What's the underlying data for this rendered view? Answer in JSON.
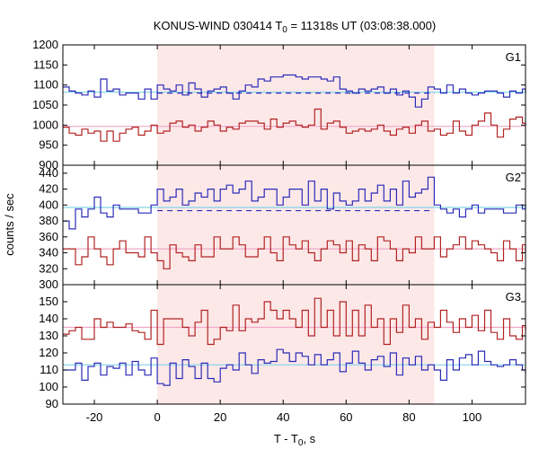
{
  "chart_data": {
    "type": "line",
    "title_main": "KONUS-WIND 030414 T",
    "title_sub": "0",
    "title_rest": " = 11318s UT (03:08:38.000)",
    "xlabel_main": "T - T",
    "xlabel_sub": "0",
    "xlabel_rest": ", s",
    "ylabel": "counts / sec",
    "xlim": [
      -30,
      117
    ],
    "x_ticks": [
      -20,
      0,
      20,
      40,
      60,
      80,
      100
    ],
    "shade": {
      "from": 0,
      "to": 88,
      "color": "#fde8e8"
    },
    "colors": {
      "blue": "#2b2bb8",
      "red": "#b22222",
      "cyan": "#7fd4e8",
      "pink": "#f0a8c8"
    },
    "bin_edges": [
      -30,
      -28,
      -26,
      -24,
      -22,
      -20,
      -18,
      -16,
      -14,
      -12,
      -10,
      -8,
      -6,
      -4,
      -2,
      0,
      2,
      4,
      6,
      8,
      10,
      12,
      14,
      16,
      18,
      20,
      22,
      24,
      26,
      28,
      30,
      32,
      34,
      36,
      38,
      40,
      42,
      44,
      46,
      48,
      50,
      52,
      54,
      56,
      58,
      60,
      62,
      64,
      66,
      68,
      70,
      72,
      74,
      76,
      78,
      80,
      82,
      84,
      86,
      88,
      90,
      92,
      94,
      96,
      98,
      100,
      102,
      104,
      106,
      108,
      110,
      112,
      114,
      116,
      117
    ],
    "panels": [
      {
        "label": "G1",
        "ylim": [
          900,
          1200
        ],
        "y_ticks": [
          900,
          950,
          1000,
          1050,
          1100,
          1150,
          1200
        ],
        "series": [
          {
            "color_key": "blue",
            "values": [
              1095,
              1085,
              1080,
              1075,
              1085,
              1070,
              1115,
              1085,
              1090,
              1075,
              1080,
              1080,
              1065,
              1090,
              1065,
              1100,
              1090,
              1085,
              1100,
              1075,
              1105,
              1090,
              1070,
              1085,
              1090,
              1095,
              1080,
              1065,
              1085,
              1100,
              1095,
              1115,
              1110,
              1120,
              1120,
              1125,
              1125,
              1120,
              1115,
              1120,
              1120,
              1115,
              1110,
              1120,
              1090,
              1085,
              1080,
              1090,
              1085,
              1090,
              1095,
              1080,
              1090,
              1075,
              1085,
              1070,
              1045,
              1065,
              1095,
              1090,
              1080,
              1100,
              1080,
              1090,
              1080,
              1075,
              1080,
              1085,
              1085,
              1080,
              1070,
              1085,
              1080,
              1090,
              1080
            ]
          },
          {
            "color_key": "red",
            "values": [
              995,
              980,
              975,
              990,
              980,
              985,
              960,
              985,
              960,
              980,
              990,
              995,
              975,
              985,
              1000,
              980,
              985,
              1005,
              1010,
              995,
              1000,
              985,
              995,
              1010,
              1000,
              985,
              995,
              990,
              1005,
              1010,
              1010,
              1005,
              990,
              1015,
              995,
              1005,
              1010,
              1000,
              995,
              1000,
              1040,
              990,
              1005,
              1010,
              995,
              980,
              985,
              990,
              985,
              990,
              1000,
              985,
              975,
              990,
              995,
              980,
              1000,
              1010,
              985,
              990,
              975,
              980,
              1010,
              985,
              975,
              1000,
              1010,
              1030,
              1000,
              970,
              990,
              1015,
              1020,
              1005,
              1000
            ]
          }
        ],
        "fits": [
          {
            "color_key": "cyan",
            "y": 1082,
            "from": -30,
            "to": 117
          },
          {
            "color_key": "pink",
            "y": 997,
            "from": -30,
            "to": 117
          },
          {
            "color_key": "blue",
            "y": 1080,
            "from": 0,
            "to": 88,
            "dashed": true
          }
        ]
      },
      {
        "label": "G2",
        "ylim": [
          300,
          450
        ],
        "y_ticks": [
          300,
          320,
          340,
          360,
          380,
          400,
          420,
          440
        ],
        "series": [
          {
            "color_key": "blue",
            "values": [
              380,
              370,
              395,
              385,
              395,
              410,
              390,
              385,
              400,
              395,
              395,
              395,
              390,
              390,
              400,
              420,
              405,
              410,
              420,
              400,
              405,
              415,
              410,
              420,
              405,
              420,
              425,
              415,
              420,
              430,
              405,
              410,
              420,
              420,
              400,
              410,
              420,
              420,
              400,
              430,
              405,
              420,
              395,
              415,
              405,
              400,
              405,
              420,
              405,
              415,
              425,
              405,
              420,
              400,
              430,
              410,
              415,
              420,
              435,
              400,
              395,
              390,
              395,
              385,
              395,
              400,
              390,
              395,
              395,
              395,
              390,
              390,
              400,
              395,
              400
            ]
          },
          {
            "color_key": "red",
            "values": [
              345,
              345,
              325,
              335,
              360,
              345,
              335,
              325,
              345,
              355,
              340,
              340,
              335,
              360,
              340,
              330,
              320,
              350,
              340,
              335,
              330,
              350,
              335,
              335,
              360,
              345,
              345,
              360,
              350,
              335,
              335,
              345,
              360,
              340,
              330,
              360,
              350,
              345,
              355,
              340,
              330,
              345,
              355,
              350,
              340,
              355,
              330,
              350,
              345,
              330,
              360,
              355,
              345,
              330,
              345,
              340,
              360,
              345,
              345,
              360,
              335,
              345,
              350,
              360,
              345,
              355,
              350,
              345,
              340,
              330,
              355,
              345,
              330,
              350,
              340
            ]
          }
        ],
        "fits": [
          {
            "color_key": "cyan",
            "y": 397,
            "from": -30,
            "to": 117
          },
          {
            "color_key": "pink",
            "y": 345,
            "from": -30,
            "to": 117
          },
          {
            "color_key": "blue",
            "y": 393,
            "from": 0,
            "to": 88,
            "dashed": true
          }
        ]
      },
      {
        "label": "G3",
        "ylim": [
          90,
          160
        ],
        "y_ticks": [
          90,
          100,
          110,
          120,
          130,
          140,
          150
        ],
        "series": [
          {
            "color_key": "blue",
            "values": [
              110,
              110,
              114,
              104,
              112,
              114,
              107,
              112,
              111,
              114,
              107,
              115,
              110,
              107,
              117,
              102,
              101,
              114,
              105,
              116,
              112,
              105,
              114,
              105,
              103,
              111,
              113,
              110,
              120,
              113,
              108,
              116,
              114,
              115,
              122,
              120,
              115,
              120,
              118,
              113,
              119,
              113,
              116,
              120,
              109,
              114,
              121,
              114,
              110,
              116,
              118,
              112,
              120,
              107,
              117,
              113,
              118,
              110,
              113,
              110,
              104,
              116,
              110,
              117,
              119,
              113,
              121,
              115,
              113,
              112,
              113,
              116,
              113,
              110,
              108
            ]
          },
          {
            "color_key": "red",
            "values": [
              131,
              133,
              135,
              128,
              128,
              140,
              135,
              138,
              135,
              135,
              137,
              133,
              132,
              128,
              145,
              125,
              140,
              140,
              140,
              135,
              130,
              138,
              145,
              125,
              128,
              135,
              133,
              148,
              133,
              140,
              138,
              140,
              150,
              145,
              140,
              145,
              140,
              135,
              145,
              130,
              152,
              135,
              145,
              130,
              150,
              130,
              145,
              130,
              148,
              135,
              140,
              125,
              140,
              132,
              148,
              135,
              140,
              128,
              138,
              135,
              145,
              138,
              132,
              140,
              135,
              142,
              133,
              145,
              132,
              128,
              140,
              130,
              128,
              136,
              133
            ]
          }
        ],
        "fits": [
          {
            "color_key": "cyan",
            "y": 113,
            "from": -30,
            "to": 117
          },
          {
            "color_key": "pink",
            "y": 135,
            "from": -30,
            "to": 117
          }
        ]
      }
    ]
  }
}
